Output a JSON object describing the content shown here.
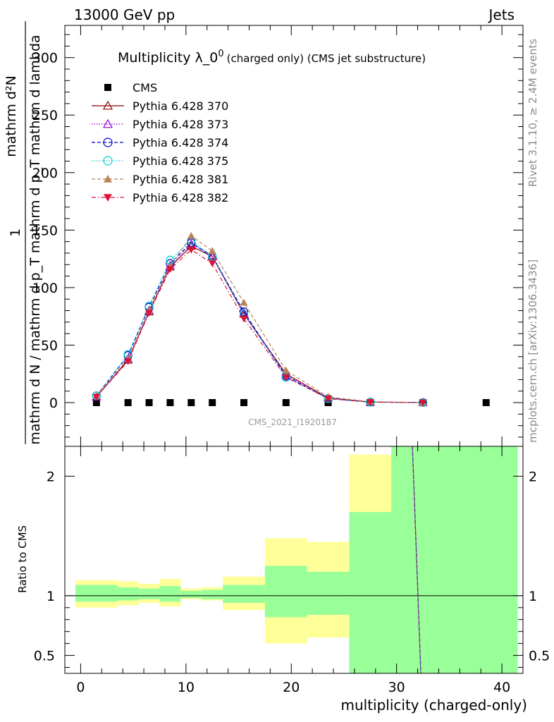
{
  "header": {
    "left": "13000 GeV pp",
    "right": "Jets"
  },
  "side_labels": {
    "rivet": "Rivet 3.1.10, ≥ 2.4M events",
    "mcplots": "mcplots.cern.ch [arXiv:1306.3436]"
  },
  "chart_data": [
    {
      "type": "line",
      "title": "Multiplicity λ_0",
      "title_sup": "0",
      "title_suffix": "(charged only) (CMS jet substructure)",
      "watermark": "CMS_2021_I1920187",
      "ylabel_num": "1",
      "ylabel_den": "mathrm d N / mathrm d p_T mathrm d p_T mathrm d lambda",
      "ylabel_right": "mathrm d²N",
      "xlim": [
        -1.5,
        42
      ],
      "ylim": [
        -38,
        328
      ],
      "yticks": [
        0,
        50,
        100,
        150,
        200,
        250,
        300
      ],
      "legend_position": "top-left",
      "series": [
        {
          "name": "CMS",
          "color": "#000000",
          "marker": "square",
          "line": "none",
          "x": [
            1.5,
            4.5,
            6.5,
            8.5,
            10.5,
            12.5,
            15.5,
            19.5,
            23.5,
            27.5,
            32.5,
            38.5
          ],
          "y": [
            0,
            0,
            0,
            0,
            0,
            0,
            0,
            0,
            0,
            0,
            0,
            0
          ]
        },
        {
          "name": "Pythia 6.428 370",
          "color": "#8b0000",
          "marker": "triangle-open",
          "line": "solid",
          "x": [
            1.5,
            4.5,
            6.5,
            8.5,
            10.5,
            12.5,
            15.5,
            19.5,
            23.5,
            27.5,
            32.5
          ],
          "y": [
            5,
            37,
            79,
            118,
            136,
            127,
            77,
            25,
            4,
            0.5,
            0.1
          ]
        },
        {
          "name": "Pythia 6.428 373",
          "color": "#9400d3",
          "marker": "triangle-open",
          "line": "dotted",
          "x": [
            1.5,
            4.5,
            6.5,
            8.5,
            10.5,
            12.5,
            15.5,
            19.5,
            23.5,
            27.5,
            32.5
          ],
          "y": [
            5,
            38,
            80,
            119,
            138,
            128,
            78,
            24,
            4,
            0.5,
            0.1
          ]
        },
        {
          "name": "Pythia 6.428 374",
          "color": "#0000cd",
          "marker": "circle-open",
          "line": "dashed",
          "x": [
            1.5,
            4.5,
            6.5,
            8.5,
            10.5,
            12.5,
            15.5,
            19.5,
            23.5,
            27.5,
            32.5
          ],
          "y": [
            6,
            41,
            83,
            121,
            139,
            127,
            79,
            23,
            3.5,
            0.4,
            0.1
          ]
        },
        {
          "name": "Pythia 6.428 375",
          "color": "#00ced1",
          "marker": "circle-open",
          "line": "dotted",
          "x": [
            1.5,
            4.5,
            6.5,
            8.5,
            10.5,
            12.5,
            15.5,
            19.5,
            23.5,
            27.5,
            32.5
          ],
          "y": [
            6,
            42,
            84,
            124,
            141,
            127,
            77,
            22,
            3.5,
            0.4,
            0.1
          ]
        },
        {
          "name": "Pythia 6.428 381",
          "color": "#b8845a",
          "marker": "triangle-filled",
          "line": "dashed",
          "x": [
            1.5,
            4.5,
            6.5,
            8.5,
            10.5,
            12.5,
            15.5,
            19.5,
            23.5,
            27.5,
            32.5
          ],
          "y": [
            6,
            38,
            80,
            119,
            145,
            132,
            87,
            28,
            5,
            0.7,
            0.1
          ]
        },
        {
          "name": "Pythia 6.428 382",
          "color": "#dc143c",
          "marker": "triangle-down-filled",
          "line": "dashdot",
          "x": [
            1.5,
            4.5,
            6.5,
            8.5,
            10.5,
            12.5,
            15.5,
            19.5,
            23.5,
            27.5,
            32.5
          ],
          "y": [
            5,
            36,
            78,
            116,
            133,
            121,
            73,
            22,
            3.5,
            0.4,
            0.1
          ]
        }
      ]
    },
    {
      "type": "area",
      "ylabel": "Ratio to CMS",
      "xlabel": "multiplicity (charged-only)",
      "xlim": [
        -1.5,
        42
      ],
      "ylim": [
        0.35,
        2.25
      ],
      "yticks": [
        0.5,
        1,
        2
      ],
      "xticks": [
        0,
        10,
        20,
        30,
        40
      ],
      "reference_line": 1,
      "bins": [
        {
          "lo": -0.5,
          "hi": 3.5,
          "outer": [
            0.9,
            1.13
          ],
          "inner": [
            0.95,
            1.09
          ]
        },
        {
          "lo": 3.5,
          "hi": 5.5,
          "outer": [
            0.92,
            1.12
          ],
          "inner": [
            0.96,
            1.07
          ]
        },
        {
          "lo": 5.5,
          "hi": 7.5,
          "outer": [
            0.94,
            1.1
          ],
          "inner": [
            0.97,
            1.06
          ]
        },
        {
          "lo": 7.5,
          "hi": 9.5,
          "outer": [
            0.91,
            1.14
          ],
          "inner": [
            0.95,
            1.08
          ]
        },
        {
          "lo": 9.5,
          "hi": 11.5,
          "outer": [
            0.97,
            1.06
          ],
          "inner": [
            0.98,
            1.04
          ]
        },
        {
          "lo": 11.5,
          "hi": 13.5,
          "outer": [
            0.96,
            1.07
          ],
          "inner": [
            0.97,
            1.05
          ]
        },
        {
          "lo": 13.5,
          "hi": 17.5,
          "outer": [
            0.88,
            1.16
          ],
          "inner": [
            0.94,
            1.09
          ]
        },
        {
          "lo": 17.5,
          "hi": 21.5,
          "outer": [
            0.6,
            1.48
          ],
          "inner": [
            0.82,
            1.25
          ]
        },
        {
          "lo": 21.5,
          "hi": 25.5,
          "outer": [
            0.65,
            1.45
          ],
          "inner": [
            0.84,
            1.2
          ]
        },
        {
          "lo": 25.5,
          "hi": 29.5,
          "outer": [
            0.35,
            2.18
          ],
          "inner": [
            0.35,
            1.7
          ]
        },
        {
          "lo": 29.5,
          "hi": 41.5,
          "outer": [
            0.35,
            2.25
          ],
          "inner": [
            0.35,
            2.25
          ]
        }
      ],
      "mc_line": {
        "x": [
          31.5,
          32.3
        ],
        "y": [
          2.25,
          0.35
        ],
        "color": "#dc143c"
      }
    }
  ]
}
